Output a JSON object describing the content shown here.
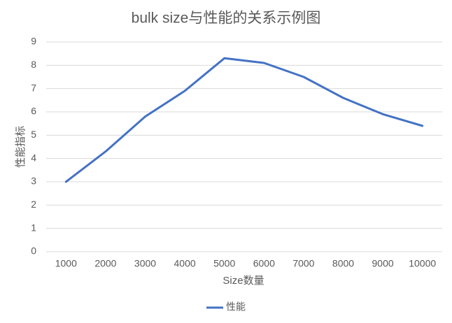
{
  "chart_data": {
    "type": "line",
    "title": "bulk size与性能的关系示例图",
    "x_label": "Size数量",
    "y_label": "性能指标",
    "categories": [
      "1000",
      "2000",
      "3000",
      "4000",
      "5000",
      "6000",
      "7000",
      "8000",
      "9000",
      "10000"
    ],
    "series": [
      {
        "name": "性能",
        "color": "#4472c4",
        "values": [
          3.0,
          4.3,
          5.8,
          6.9,
          8.3,
          8.1,
          7.5,
          6.6,
          5.9,
          5.4
        ]
      }
    ],
    "ylim": [
      0,
      9
    ],
    "yticks": [
      0,
      1,
      2,
      3,
      4,
      5,
      6,
      7,
      8,
      9
    ],
    "grid": true,
    "legend": "bottom"
  }
}
